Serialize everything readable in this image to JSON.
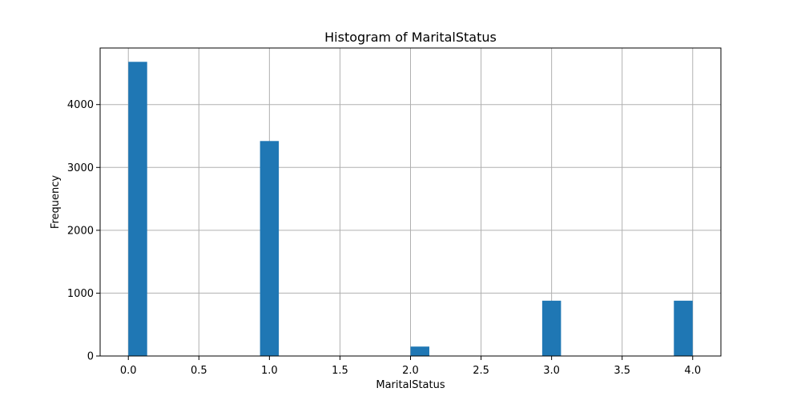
{
  "chart_data": {
    "type": "bar",
    "title": "Histogram of MaritalStatus",
    "xlabel": "MaritalStatus",
    "ylabel": "Frequency",
    "xlim": [
      -0.2,
      4.2
    ],
    "ylim": [
      0,
      4900
    ],
    "bin_width": 0.13333,
    "bars": [
      {
        "x_start": 0.0,
        "x_end": 0.13333,
        "value": 4680
      },
      {
        "x_start": 0.93333,
        "x_end": 1.06667,
        "value": 3420
      },
      {
        "x_start": 2.0,
        "x_end": 2.13333,
        "value": 150
      },
      {
        "x_start": 2.93333,
        "x_end": 3.06667,
        "value": 880
      },
      {
        "x_start": 3.86667,
        "x_end": 4.0,
        "value": 880
      }
    ],
    "xticks": [
      {
        "value": 0.0,
        "label": "0.0"
      },
      {
        "value": 0.5,
        "label": "0.5"
      },
      {
        "value": 1.0,
        "label": "1.0"
      },
      {
        "value": 1.5,
        "label": "1.5"
      },
      {
        "value": 2.0,
        "label": "2.0"
      },
      {
        "value": 2.5,
        "label": "2.5"
      },
      {
        "value": 3.0,
        "label": "3.0"
      },
      {
        "value": 3.5,
        "label": "3.5"
      },
      {
        "value": 4.0,
        "label": "4.0"
      }
    ],
    "yticks": [
      {
        "value": 0,
        "label": "0"
      },
      {
        "value": 1000,
        "label": "1000"
      },
      {
        "value": 2000,
        "label": "2000"
      },
      {
        "value": 3000,
        "label": "3000"
      },
      {
        "value": 4000,
        "label": "4000"
      }
    ],
    "grid": true,
    "bar_color": "#1f77b4"
  }
}
